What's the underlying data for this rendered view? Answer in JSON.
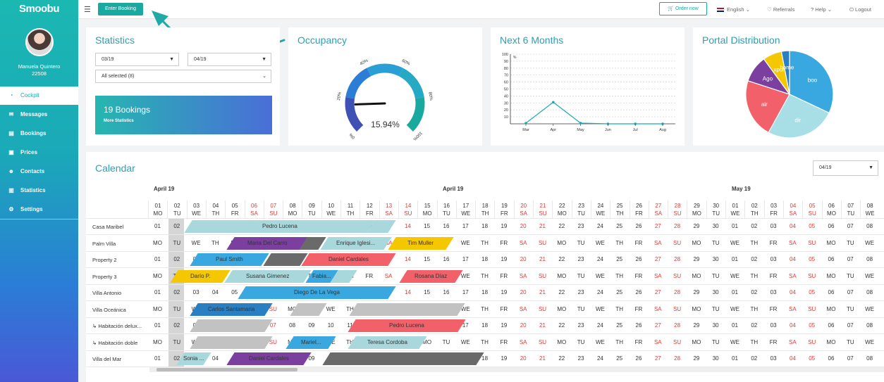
{
  "app": {
    "logo": "Smoobu"
  },
  "user": {
    "name": "Manuela Quintero",
    "id": "22508"
  },
  "nav": [
    {
      "label": "Cockpit",
      "icon": "dashboard-icon",
      "active": true
    },
    {
      "label": "Messages",
      "icon": "envelope-icon"
    },
    {
      "label": "Bookings",
      "icon": "list-icon"
    },
    {
      "label": "Prices",
      "icon": "price-tag-icon"
    },
    {
      "label": "Contacts",
      "icon": "users-icon"
    },
    {
      "label": "Statistics",
      "icon": "chart-icon"
    },
    {
      "label": "Settings",
      "icon": "gear-icon"
    }
  ],
  "topbar": {
    "enter_booking": "Enter Booking",
    "order_now": "Order now",
    "language": "English",
    "referrals": "Referrals",
    "help": "Help",
    "logout": "Logout"
  },
  "statistics": {
    "title": "Statistics",
    "from": "03/19",
    "to": "04/19",
    "filter": "All selected (8)",
    "bookings": "19 Bookings",
    "more": "More Statistics"
  },
  "occupancy": {
    "title": "Occupancy",
    "value": "15.94%",
    "fraction": 0.1594,
    "ticks": [
      "0%",
      "20%",
      "40%",
      "60%",
      "80%",
      "100%"
    ]
  },
  "next6": {
    "title": "Next 6 Months"
  },
  "portal": {
    "title": "Portal Distribution"
  },
  "chart_data": [
    {
      "type": "line",
      "title": "Next 6 Months",
      "categories": [
        "Mar",
        "Apr",
        "May",
        "Jun",
        "Jul",
        "Aug"
      ],
      "values": [
        1,
        31,
        1,
        0,
        0,
        0
      ],
      "ylim": [
        0,
        100
      ],
      "yticks": [
        10,
        20,
        30,
        40,
        50,
        60,
        70,
        80,
        90,
        100
      ],
      "yaxis_label": "%",
      "color": "#1aa9b8"
    },
    {
      "type": "pie",
      "title": "Portal Distribution",
      "labels": [
        "boo",
        "dir",
        "air",
        "Ago",
        "xpdi",
        "home"
      ],
      "values": [
        32,
        26,
        22,
        10,
        7,
        3
      ],
      "colors": [
        "#3aa8e0",
        "#a8dfe6",
        "#f2606a",
        "#7b3fa0",
        "#f5c700",
        "#2a7ec2"
      ]
    }
  ],
  "calendar": {
    "title": "Calendar",
    "month_select": "04/19",
    "months": [
      "April 19",
      "April 19",
      "May 19"
    ],
    "days": [
      {
        "d": "01",
        "w": "MO"
      },
      {
        "d": "02",
        "w": "TU"
      },
      {
        "d": "03",
        "w": "WE"
      },
      {
        "d": "04",
        "w": "TH"
      },
      {
        "d": "05",
        "w": "FR"
      },
      {
        "d": "06",
        "w": "SA",
        "r": 1
      },
      {
        "d": "07",
        "w": "SU",
        "r": 1
      },
      {
        "d": "08",
        "w": "MO"
      },
      {
        "d": "09",
        "w": "TU"
      },
      {
        "d": "10",
        "w": "WE"
      },
      {
        "d": "11",
        "w": "TH"
      },
      {
        "d": "12",
        "w": "FR"
      },
      {
        "d": "13",
        "w": "SA",
        "r": 1
      },
      {
        "d": "14",
        "w": "SU",
        "r": 1
      },
      {
        "d": "15",
        "w": "MO"
      },
      {
        "d": "16",
        "w": "TU"
      },
      {
        "d": "17",
        "w": "WE"
      },
      {
        "d": "18",
        "w": "TH"
      },
      {
        "d": "19",
        "w": "FR"
      },
      {
        "d": "20",
        "w": "SA",
        "r": 1
      },
      {
        "d": "21",
        "w": "SU",
        "r": 1
      },
      {
        "d": "22",
        "w": "MO"
      },
      {
        "d": "23",
        "w": "TU"
      },
      {
        "d": "24",
        "w": "WE"
      },
      {
        "d": "25",
        "w": "TH"
      },
      {
        "d": "26",
        "w": "FR"
      },
      {
        "d": "27",
        "w": "SA",
        "r": 1
      },
      {
        "d": "28",
        "w": "SU",
        "r": 1
      },
      {
        "d": "29",
        "w": "MO"
      },
      {
        "d": "30",
        "w": "TU"
      },
      {
        "d": "01",
        "w": "WE"
      },
      {
        "d": "02",
        "w": "TH"
      },
      {
        "d": "03",
        "w": "FR"
      },
      {
        "d": "04",
        "w": "SA",
        "r": 1
      },
      {
        "d": "05",
        "w": "SU",
        "r": 1
      },
      {
        "d": "06",
        "w": "MO"
      },
      {
        "d": "07",
        "w": "TU"
      },
      {
        "d": "08",
        "w": "WE"
      }
    ],
    "properties": [
      {
        "name": "Casa Maribel",
        "style": "num"
      },
      {
        "name": "Palm Villa",
        "style": "wd"
      },
      {
        "name": "Property 2",
        "style": "num"
      },
      {
        "name": "Property 3",
        "style": "wd"
      },
      {
        "name": "Villa Antonio",
        "style": "num"
      },
      {
        "name": "Villa Oceánica",
        "style": "wd"
      },
      {
        "name": "↳ Habitación delux...",
        "style": "num"
      },
      {
        "name": "↳ Habitación doble",
        "style": "wd"
      },
      {
        "name": "Villa del Mar",
        "style": "num"
      }
    ],
    "bookings": [
      {
        "row": 0,
        "start": 2,
        "end": 11.5,
        "label": "Pedro Lucena",
        "color": "#a8d8dc"
      },
      {
        "row": 0,
        "start": 11.5,
        "end": 12.6,
        "label": "",
        "color": "#a8d8dc"
      },
      {
        "row": 1,
        "start": 4.2,
        "end": 8.0,
        "label": "Maria Del Carro",
        "color": "#7b3fa0"
      },
      {
        "row": 1,
        "start": 8.0,
        "end": 9.0,
        "label": "",
        "color": "#6a6a6a"
      },
      {
        "row": 1,
        "start": 9.1,
        "end": 12.4,
        "label": "Enrique Iglesi...",
        "color": "#a8d8dc"
      },
      {
        "row": 1,
        "start": 12.6,
        "end": 15.6,
        "label": "Tim Muller",
        "color": "#f5c700"
      },
      {
        "row": 2,
        "start": 2.3,
        "end": 6.0,
        "label": "Paul Smith",
        "color": "#3aa8e0"
      },
      {
        "row": 2,
        "start": 6.1,
        "end": 8.0,
        "label": "",
        "color": "#6a6a6a"
      },
      {
        "row": 2,
        "start": 8.1,
        "end": 12.6,
        "label": "Daniel Cardales",
        "color": "#f2606a"
      },
      {
        "row": 3,
        "start": 1.3,
        "end": 4.0,
        "label": "Darío P.",
        "color": "#f5c700"
      },
      {
        "row": 3,
        "start": 4.1,
        "end": 8.2,
        "label": "Susana Gimenez",
        "color": "#a8d8dc"
      },
      {
        "row": 3,
        "start": 8.3,
        "end": 9.6,
        "label": "Fabia...",
        "color": "#3aa8e0"
      },
      {
        "row": 3,
        "start": 9.6,
        "end": 10.6,
        "label": "",
        "color": "#a8d8dc"
      },
      {
        "row": 3,
        "start": 13.2,
        "end": 16.1,
        "label": "Rosana Díaz",
        "color": "#f2606a"
      },
      {
        "row": 4,
        "start": 4.8,
        "end": 12.6,
        "label": "Diego De La Vega",
        "color": "#3aa8e0"
      },
      {
        "row": 5,
        "start": 2.3,
        "end": 6.2,
        "label": "Carlos Santamaria",
        "color": "#2a7ec2"
      },
      {
        "row": 5,
        "start": 7.5,
        "end": 9.0,
        "label": "",
        "color": "#c2c2c2"
      },
      {
        "row": 5,
        "start": 10.6,
        "end": 16.2,
        "label": "",
        "color": "#c2c2c2"
      },
      {
        "row": 6,
        "start": 2.3,
        "end": 6.2,
        "label": "",
        "color": "#c2c2c2"
      },
      {
        "row": 6,
        "start": 10.5,
        "end": 16.2,
        "label": "Pedro Lucena",
        "color": "#f2606a"
      },
      {
        "row": 7,
        "start": 2.3,
        "end": 6.2,
        "label": "",
        "color": "#c2c2c2"
      },
      {
        "row": 7,
        "start": 7.3,
        "end": 9.5,
        "label": "Mariel...",
        "color": "#3aa8e0"
      },
      {
        "row": 7,
        "start": 10.5,
        "end": 14.2,
        "label": "Teresa Cordoba",
        "color": "#a8d8dc"
      },
      {
        "row": 8,
        "start": 1.6,
        "end": 3.0,
        "label": "Sonia ...",
        "color": "#a8d8dc"
      },
      {
        "row": 8,
        "start": 4.2,
        "end": 8.2,
        "label": "Daniel Cardales",
        "color": "#7b3fa0"
      },
      {
        "row": 8,
        "start": 9.2,
        "end": 17.2,
        "label": "",
        "color": "#6a6a6a"
      }
    ]
  }
}
